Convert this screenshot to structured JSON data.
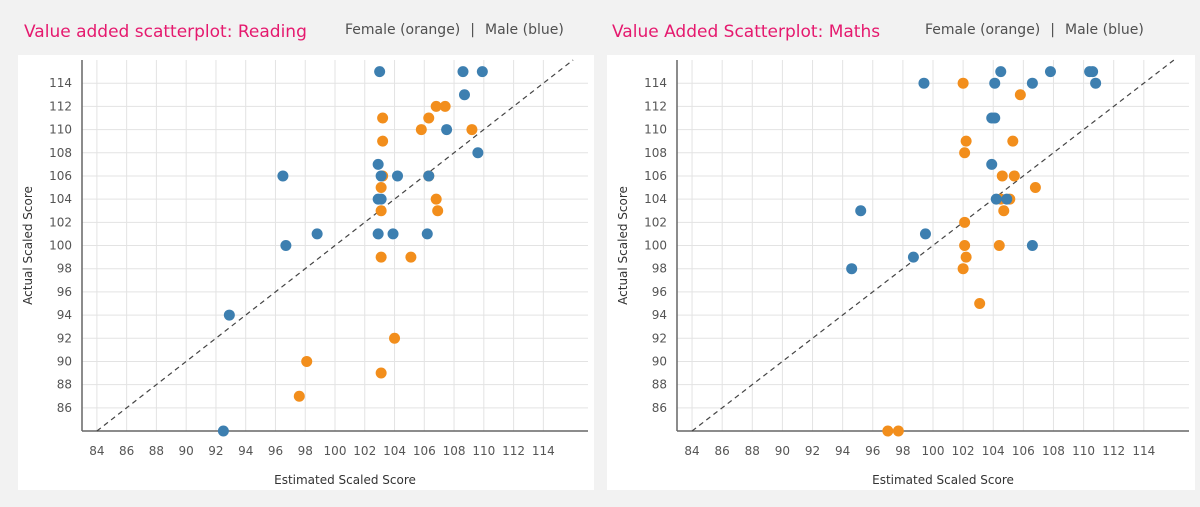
{
  "colors": {
    "female": "#f28e1c",
    "male": "#3d7fb0",
    "title": "#e5196e"
  },
  "left": {
    "title": "Value added scatterplot: Reading",
    "legend_female": "Female (orange)",
    "legend_sep": "|",
    "legend_male": "Male  (blue)"
  },
  "right": {
    "title": "Value Added Scatterplot: Maths",
    "legend_female": "Female (orange)",
    "legend_sep": "|",
    "legend_male": "Male  (blue)"
  },
  "chart_data": [
    {
      "type": "scatter",
      "title": "Value added scatterplot: Reading",
      "xlabel": "Estimated Scaled Score",
      "ylabel": "Actual Scaled Score",
      "xlim": [
        83,
        117
      ],
      "ylim": [
        84,
        116
      ],
      "xticks": [
        84,
        86,
        88,
        90,
        92,
        94,
        96,
        98,
        100,
        102,
        104,
        106,
        108,
        110,
        112,
        114
      ],
      "yticks": [
        86,
        88,
        90,
        92,
        94,
        96,
        98,
        100,
        102,
        104,
        106,
        108,
        110,
        112,
        114
      ],
      "grid": true,
      "reference_line": "y = x (dashed)",
      "series": [
        {
          "name": "Female (orange)",
          "color": "#f28e1c",
          "points": [
            [
              103.2,
              111
            ],
            [
              103.2,
              109
            ],
            [
              103.2,
              106
            ],
            [
              103.1,
              105
            ],
            [
              103.1,
              103
            ],
            [
              103.1,
              99
            ],
            [
              103.1,
              89
            ],
            [
              105.1,
              99
            ],
            [
              104,
              92
            ],
            [
              98.1,
              90
            ],
            [
              97.6,
              87
            ],
            [
              105.8,
              110
            ],
            [
              106.3,
              111
            ],
            [
              106.8,
              112
            ],
            [
              107.4,
              112
            ],
            [
              106.3,
              106
            ],
            [
              106.8,
              104
            ],
            [
              106.9,
              103
            ],
            [
              109.2,
              110
            ]
          ]
        },
        {
          "name": "Male (blue)",
          "color": "#3d7fb0",
          "points": [
            [
              103,
              115
            ],
            [
              102.9,
              107
            ],
            [
              103.1,
              106
            ],
            [
              102.9,
              104
            ],
            [
              103.1,
              104
            ],
            [
              102.9,
              101
            ],
            [
              103.9,
              101
            ],
            [
              104.2,
              106
            ],
            [
              96.5,
              106
            ],
            [
              96.7,
              100
            ],
            [
              98.8,
              101
            ],
            [
              92.9,
              94
            ],
            [
              92.5,
              84
            ],
            [
              106.2,
              101
            ],
            [
              106.3,
              106
            ],
            [
              107.5,
              110
            ],
            [
              108.7,
              113
            ],
            [
              108.6,
              115
            ],
            [
              109.9,
              115
            ],
            [
              109.6,
              108
            ]
          ]
        }
      ]
    },
    {
      "type": "scatter",
      "title": "Value Added Scatterplot: Maths",
      "xlabel": "Estimated Scaled Score",
      "ylabel": "Actual Scaled Score",
      "xlim": [
        83,
        117
      ],
      "ylim": [
        84,
        116
      ],
      "xticks": [
        84,
        86,
        88,
        90,
        92,
        94,
        96,
        98,
        100,
        102,
        104,
        106,
        108,
        110,
        112,
        114
      ],
      "yticks": [
        86,
        88,
        90,
        92,
        94,
        96,
        98,
        100,
        102,
        104,
        106,
        108,
        110,
        112,
        114
      ],
      "grid": true,
      "reference_line": "y = x (dashed)",
      "series": [
        {
          "name": "Female (orange)",
          "color": "#f28e1c",
          "points": [
            [
              102,
              114
            ],
            [
              105.8,
              113
            ],
            [
              102.2,
              109
            ],
            [
              105.3,
              109
            ],
            [
              102.1,
              108
            ],
            [
              104.6,
              106
            ],
            [
              105.4,
              106
            ],
            [
              106.8,
              105
            ],
            [
              104.5,
              104
            ],
            [
              105.1,
              104
            ],
            [
              104.7,
              103
            ],
            [
              102.1,
              102
            ],
            [
              102.1,
              100
            ],
            [
              104.4,
              100
            ],
            [
              102.2,
              99
            ],
            [
              102,
              98
            ],
            [
              103.1,
              95
            ],
            [
              97,
              84
            ],
            [
              97.7,
              84
            ]
          ]
        },
        {
          "name": "Male (blue)",
          "color": "#3d7fb0",
          "points": [
            [
              99.4,
              114
            ],
            [
              104.1,
              114
            ],
            [
              106.6,
              114
            ],
            [
              104.5,
              115
            ],
            [
              107.8,
              115
            ],
            [
              110.4,
              115
            ],
            [
              110.6,
              115
            ],
            [
              110.8,
              114
            ],
            [
              103.9,
              111
            ],
            [
              104.1,
              111
            ],
            [
              103.9,
              107
            ],
            [
              104.2,
              104
            ],
            [
              104.9,
              104
            ],
            [
              95.2,
              103
            ],
            [
              99.5,
              101
            ],
            [
              94.6,
              98
            ],
            [
              98.7,
              99
            ],
            [
              106.6,
              100
            ]
          ]
        }
      ]
    }
  ]
}
